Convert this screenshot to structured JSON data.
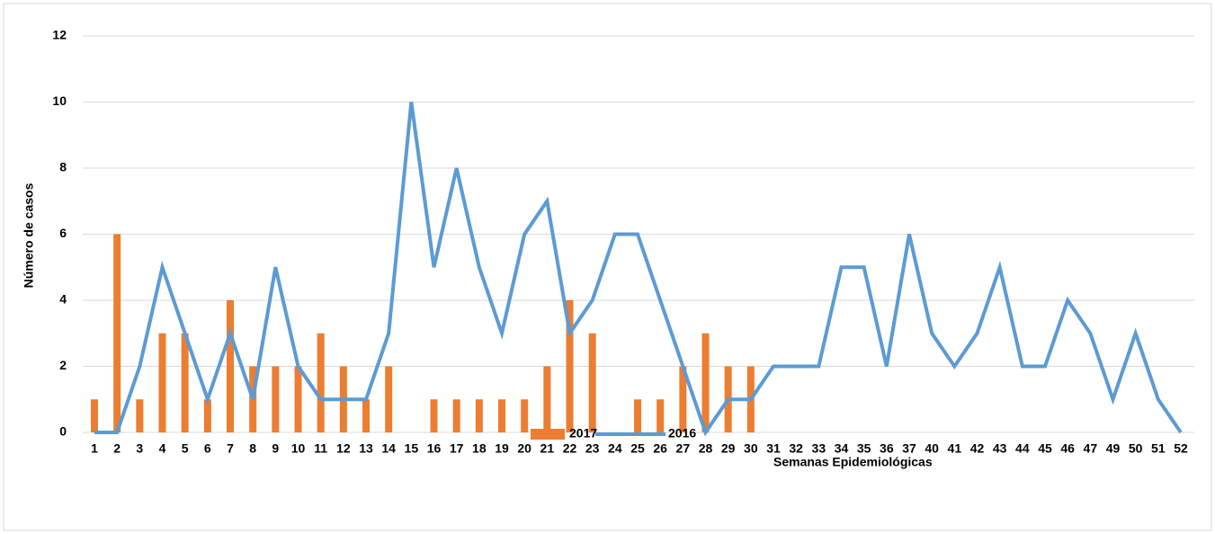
{
  "chart_data": {
    "type": "bar_line",
    "y_label": "Número de casos",
    "x_label": "Semanas Epidemiológicas",
    "categories": [
      "1",
      "2",
      "3",
      "4",
      "5",
      "6",
      "7",
      "8",
      "9",
      "10",
      "11",
      "12",
      "13",
      "14",
      "15",
      "16",
      "17",
      "18",
      "19",
      "20",
      "21",
      "22",
      "23",
      "24",
      "25",
      "26",
      "27",
      "28",
      "29",
      "30",
      "31",
      "32",
      "33",
      "34",
      "35",
      "36",
      "37",
      "40",
      "41",
      "42",
      "43",
      "44",
      "45",
      "46",
      "47",
      "49",
      "50",
      "51",
      "52"
    ],
    "series": [
      {
        "name": "2017",
        "type": "bar",
        "color": "#ed7d31",
        "values": [
          1,
          6,
          1,
          3,
          3,
          1,
          4,
          2,
          2,
          2,
          3,
          2,
          1,
          2,
          0,
          1,
          1,
          1,
          1,
          1,
          2,
          4,
          3,
          0,
          1,
          1,
          2,
          3,
          2,
          2,
          null,
          null,
          null,
          null,
          null,
          null,
          null,
          null,
          null,
          null,
          null,
          null,
          null,
          null,
          null,
          null,
          null,
          null,
          null
        ]
      },
      {
        "name": "2016",
        "type": "line",
        "color": "#5b9bd5",
        "values": [
          0,
          0,
          2,
          5,
          3,
          1,
          3,
          1,
          5,
          2,
          1,
          1,
          1,
          3,
          10,
          5,
          8,
          5,
          3,
          6,
          7,
          3,
          4,
          6,
          6,
          4,
          2,
          0,
          1,
          1,
          2,
          2,
          2,
          5,
          5,
          2,
          6,
          3,
          2,
          3,
          5,
          2,
          2,
          4,
          3,
          1,
          3,
          1,
          0
        ]
      }
    ],
    "ylim": [
      0,
      12
    ],
    "yticks": [
      0,
      2,
      4,
      6,
      8,
      10,
      12
    ],
    "grid": true
  }
}
